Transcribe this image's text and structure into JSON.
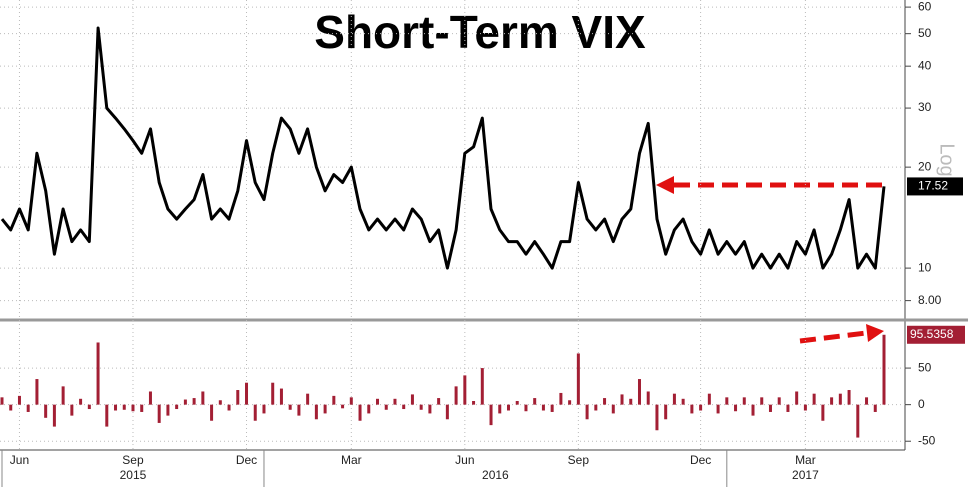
{
  "chart_data": [
    {
      "type": "line",
      "title": "Short-Term VIX",
      "scale_label": "Log",
      "log_scale": true,
      "grid": true,
      "color": "#000000",
      "ylim": [
        7.1,
        63
      ],
      "yticks": [
        {
          "value": 8,
          "label": "8.00"
        },
        10,
        20,
        30,
        40,
        50,
        60
      ],
      "values": [
        14,
        13,
        15,
        13,
        22,
        17,
        11,
        15,
        12,
        13,
        12,
        52,
        30,
        28,
        26,
        24,
        22,
        26,
        18,
        15,
        14,
        15,
        16,
        19,
        14,
        15,
        14,
        17,
        24,
        18,
        16,
        22,
        28,
        26,
        22,
        26,
        20,
        17,
        19,
        18,
        20,
        15,
        13,
        14,
        13,
        14,
        13,
        15,
        14,
        12,
        13,
        10,
        13,
        22,
        23,
        28,
        15,
        13,
        12,
        12,
        11,
        12,
        11,
        10,
        12,
        12,
        18,
        14,
        13,
        14,
        12,
        14,
        15,
        22,
        27,
        14,
        11,
        13,
        14,
        12,
        11,
        13,
        11,
        12,
        11,
        12,
        10,
        11,
        10,
        11,
        10,
        12,
        11,
        13,
        10,
        11,
        13,
        16,
        10,
        11,
        10,
        17.52
      ]
    },
    {
      "type": "bar",
      "grid": true,
      "color": "#a31f34",
      "ylim": [
        -62,
        113
      ],
      "yticks": [
        -50,
        0,
        50
      ],
      "values": [
        10,
        -8,
        12,
        -10,
        35,
        -18,
        -30,
        25,
        -15,
        8,
        -6,
        85,
        -30,
        -8,
        -7,
        -9,
        -10,
        18,
        -25,
        -15,
        -6,
        7,
        9,
        18,
        -22,
        6,
        -8,
        20,
        30,
        -22,
        -12,
        30,
        22,
        -7,
        -15,
        15,
        -20,
        -12,
        12,
        -5,
        10,
        -22,
        -12,
        8,
        -7,
        8,
        -6,
        14,
        -7,
        -12,
        9,
        -20,
        25,
        40,
        5,
        50,
        -28,
        -12,
        -8,
        5,
        -9,
        9,
        -8,
        -10,
        16,
        6,
        70,
        -20,
        -8,
        9,
        -12,
        14,
        8,
        35,
        18,
        -35,
        -20,
        15,
        8,
        -12,
        -8,
        15,
        -12,
        10,
        -9,
        10,
        -15,
        10,
        -10,
        10,
        -10,
        18,
        -8,
        15,
        -22,
        10,
        15,
        20,
        -45,
        10,
        -10,
        95.5358
      ],
      "categories": [
        null,
        null,
        "Jun",
        null,
        null,
        null,
        null,
        null,
        null,
        null,
        null,
        null,
        null,
        null,
        null,
        "Sep",
        null,
        null,
        null,
        null,
        null,
        null,
        null,
        null,
        null,
        null,
        null,
        null,
        "Dec",
        null,
        null,
        null,
        null,
        null,
        null,
        null,
        null,
        null,
        null,
        null,
        "Mar",
        null,
        null,
        null,
        null,
        null,
        null,
        null,
        null,
        null,
        null,
        null,
        null,
        "Jun",
        null,
        null,
        null,
        null,
        null,
        null,
        null,
        null,
        null,
        null,
        null,
        null,
        "Sep",
        null,
        null,
        null,
        null,
        null,
        null,
        null,
        null,
        null,
        null,
        null,
        null,
        null,
        "Dec",
        null,
        null,
        null,
        null,
        null,
        null,
        null,
        null,
        null,
        null,
        null,
        "Mar",
        null,
        null,
        null,
        null,
        null,
        null,
        null,
        null,
        null
      ],
      "xgroups": [
        {
          "label": "2015",
          "range": [
            0,
            30
          ]
        },
        {
          "label": "2016",
          "range": [
            30,
            83
          ]
        },
        {
          "label": "2017",
          "range": [
            83,
            101
          ]
        }
      ]
    }
  ]
}
